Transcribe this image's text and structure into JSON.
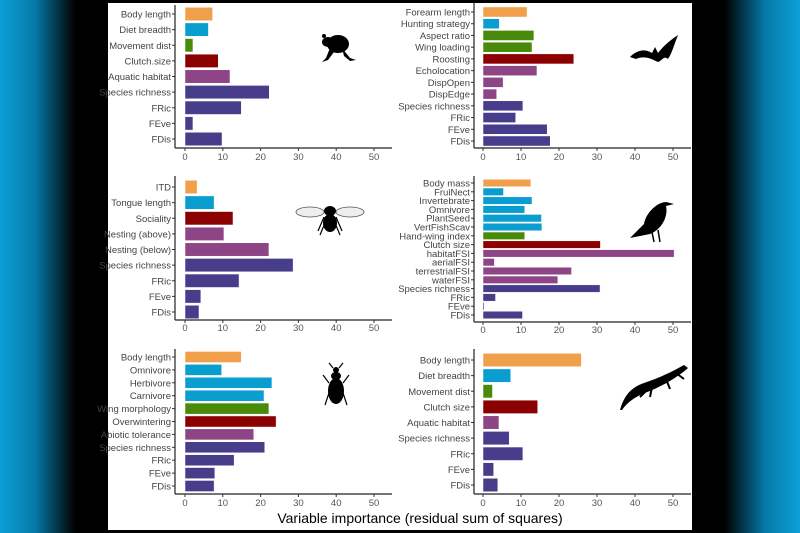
{
  "colors": {
    "size": "#F0A04B",
    "diet": "#0A9DD0",
    "mobility": "#4A8A0A",
    "reproduction": "#8B0000",
    "habitat": "#8E4585",
    "community": "#483D8B"
  },
  "chart_data": [
    {
      "type": "bar",
      "orientation": "horizontal",
      "taxon_icon": "frog-silhouette-icon",
      "xlim": [
        0,
        50
      ],
      "xticks": [
        0,
        10,
        20,
        30,
        40,
        50
      ],
      "categories": [
        "Body length",
        "Diet breadth",
        "Movement dist",
        "Clutch.size",
        "Aquatic habitat",
        "Species richness",
        "FRic",
        "FEve",
        "FDis"
      ],
      "values": [
        7.3,
        6.2,
        2.1,
        8.8,
        11.9,
        22.3,
        14.9,
        2.1,
        9.8
      ],
      "color_keys": [
        "size",
        "diet",
        "mobility",
        "reproduction",
        "habitat",
        "community",
        "community",
        "community",
        "community"
      ]
    },
    {
      "type": "bar",
      "orientation": "horizontal",
      "taxon_icon": "bat-silhouette-icon",
      "xlim": [
        0,
        50
      ],
      "xticks": [
        0,
        10,
        20,
        30,
        40,
        50
      ],
      "categories": [
        "Forearm length",
        "Hunting strategy",
        "Aspect ratio",
        "Wing loading",
        "Roosting",
        "Echolocation",
        "DispOpen",
        "DispEdge",
        "Species richness",
        "FRic",
        "FEve",
        "FDis"
      ],
      "values": [
        11.6,
        4.3,
        13.4,
        12.9,
        23.9,
        14.2,
        5.3,
        3.6,
        10.5,
        8.6,
        16.9,
        17.7
      ],
      "color_keys": [
        "size",
        "diet",
        "mobility",
        "mobility",
        "reproduction",
        "habitat",
        "habitat",
        "habitat",
        "community",
        "community",
        "community",
        "community"
      ]
    },
    {
      "type": "bar",
      "orientation": "horizontal",
      "taxon_icon": "bee-silhouette-icon",
      "xlim": [
        0,
        50
      ],
      "xticks": [
        0,
        10,
        20,
        30,
        40,
        50
      ],
      "categories": [
        "ITD",
        "Tongue length",
        "Sociality",
        "Nesting (above)",
        "Nesting (below)",
        "Species richness",
        "FRic",
        "FEve",
        "FDis"
      ],
      "values": [
        3.2,
        7.7,
        12.7,
        10.3,
        22.2,
        28.6,
        14.3,
        4.2,
        3.7
      ],
      "color_keys": [
        "size",
        "diet",
        "reproduction",
        "habitat",
        "habitat",
        "community",
        "community",
        "community",
        "community"
      ]
    },
    {
      "type": "bar",
      "orientation": "horizontal",
      "taxon_icon": "bird-silhouette-icon",
      "xlim": [
        0,
        50
      ],
      "xticks": [
        0,
        10,
        20,
        30,
        40,
        50
      ],
      "categories": [
        "Body mass",
        "FruiNect",
        "Invertebrate",
        "Omnivore",
        "PlantSeed",
        "VertFishScav",
        "Hand-wing index",
        "Clutch size",
        "habitatFSI",
        "aerialFSI",
        "terrestrialFSI",
        "waterFSI",
        "Species richness",
        "FRic",
        "FEve",
        "FDis"
      ],
      "values": [
        12.6,
        5.4,
        12.9,
        11.0,
        15.4,
        15.5,
        11.0,
        30.9,
        50.3,
        3.0,
        23.3,
        19.7,
        30.8,
        3.3,
        0.3,
        10.4
      ],
      "color_keys": [
        "size",
        "diet",
        "diet",
        "diet",
        "diet",
        "diet",
        "mobility",
        "reproduction",
        "habitat",
        "habitat",
        "habitat",
        "habitat",
        "community",
        "community",
        "community",
        "community"
      ]
    },
    {
      "type": "bar",
      "orientation": "horizontal",
      "taxon_icon": "beetle-silhouette-icon",
      "xlim": [
        0,
        50
      ],
      "xticks": [
        0,
        10,
        20,
        30,
        40,
        50
      ],
      "categories": [
        "Body length",
        "Omnivore",
        "Herbivore",
        "Carnivore",
        "Wing morphology",
        "Overwintering",
        "Abiotic tolerance",
        "Species richness",
        "FRic",
        "FEve",
        "FDis"
      ],
      "values": [
        14.9,
        9.7,
        23.0,
        20.9,
        22.2,
        24.1,
        18.2,
        21.1,
        13.0,
        7.9,
        7.7
      ],
      "color_keys": [
        "size",
        "diet",
        "diet",
        "diet",
        "mobility",
        "reproduction",
        "habitat",
        "community",
        "community",
        "community",
        "community"
      ]
    },
    {
      "type": "bar",
      "orientation": "horizontal",
      "taxon_icon": "lizard-silhouette-icon",
      "xlim": [
        0,
        50
      ],
      "xticks": [
        0,
        10,
        20,
        30,
        40,
        50
      ],
      "categories": [
        "Body length",
        "Diet breadth",
        "Movement dist",
        "Clutch size",
        "Aquatic habitat",
        "Species richness",
        "FRic",
        "FEve",
        "FDis"
      ],
      "values": [
        25.9,
        7.3,
        2.5,
        14.4,
        4.2,
        6.9,
        10.5,
        2.8,
        3.9
      ],
      "color_keys": [
        "size",
        "diet",
        "mobility",
        "reproduction",
        "habitat",
        "community",
        "community",
        "community",
        "community"
      ]
    }
  ],
  "xlabel": "Variable importance (residual sum of squares)"
}
